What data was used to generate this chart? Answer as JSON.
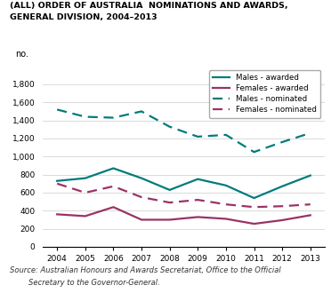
{
  "years": [
    2004,
    2005,
    2006,
    2007,
    2008,
    2009,
    2010,
    2011,
    2012,
    2013
  ],
  "males_awarded": [
    730,
    760,
    870,
    760,
    630,
    750,
    680,
    540,
    670,
    790
  ],
  "females_awarded": [
    360,
    340,
    440,
    300,
    300,
    330,
    310,
    255,
    295,
    350
  ],
  "males_nominated": [
    1520,
    1440,
    1430,
    1500,
    1330,
    1220,
    1240,
    1050,
    1160,
    1260
  ],
  "females_nominated": [
    700,
    600,
    670,
    550,
    490,
    520,
    470,
    440,
    450,
    470
  ],
  "teal_color": "#007b7b",
  "purple_color": "#993366",
  "title_line1": "(ALL) ORDER OF AUSTRALIA  NOMINATIONS AND AWARDS,",
  "title_line2": "GENERAL DIVISION, 2004–2013",
  "ylabel": "no.",
  "ylim": [
    0,
    2000
  ],
  "yticks": [
    0,
    200,
    400,
    600,
    800,
    1000,
    1200,
    1400,
    1600,
    1800
  ],
  "source_line1": "Source: Australian Honours and Awards Secretariat, Office to the Official",
  "source_line2": "        Secretary to the Governor-General.",
  "legend_labels": [
    "Males - awarded",
    "Females - awarded",
    "Males - nominated",
    "Females - nominated"
  ]
}
